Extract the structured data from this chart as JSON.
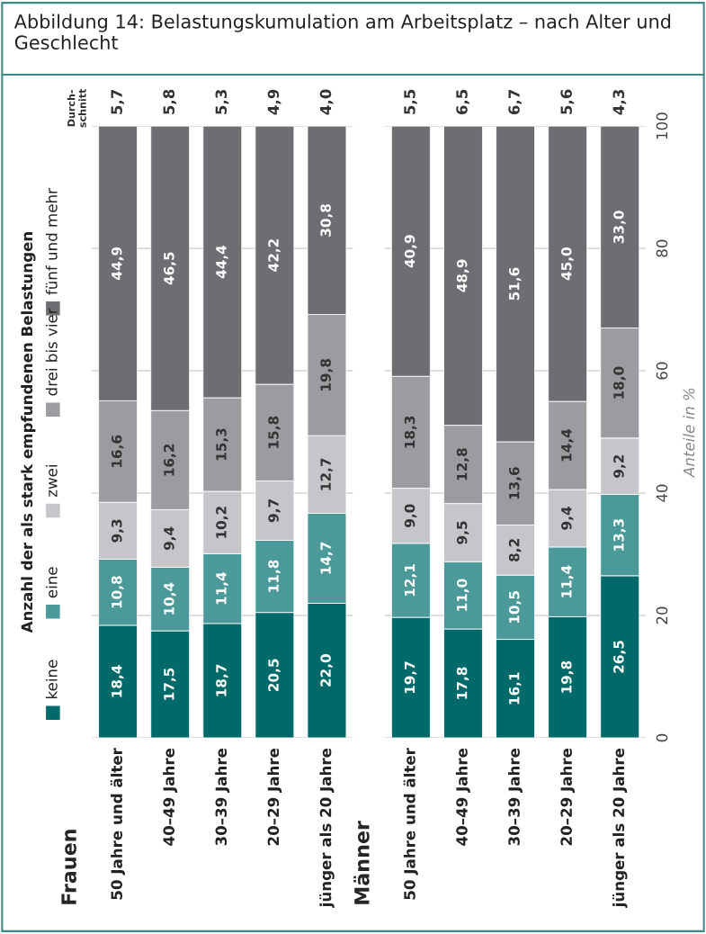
{
  "chart_data": [
    {
      "type": "bar",
      "title": "Abbildung 14: Belastungskumulation am Arbeitsplatz – nach Alter und Geschlecht",
      "subtitle": "Frauen",
      "legend_title": "Anzahl der als stark empfundenen Belastungen",
      "legend": "left",
      "stacked": true,
      "grid": "y",
      "tick_labels": "x",
      "categories": [
        "50 Jahre und älter",
        "40–49 Jahre",
        "30–39 Jahre",
        "20–29 Jahre",
        "jünger als 20 Jahre"
      ],
      "ylim": [
        0,
        100
      ],
      "yticks": [
        0,
        20,
        40,
        60,
        80,
        100
      ],
      "series": [
        {
          "name": "keine",
          "color": "#006a6a",
          "values": [
            18.4,
            17.5,
            18.7,
            20.5,
            22.0
          ],
          "value_labels": [
            "18,4",
            "17,5",
            "18,7",
            "20,5",
            "22,0"
          ]
        },
        {
          "name": "eine",
          "color": "#4b9999",
          "values": [
            10.8,
            10.4,
            11.4,
            11.8,
            14.7
          ],
          "value_labels": [
            "10,8",
            "10,4",
            "11,4",
            "11,8",
            "14,7"
          ]
        },
        {
          "name": "zwei",
          "color": "#c6c6ca",
          "values": [
            9.3,
            9.4,
            10.2,
            9.7,
            12.7
          ],
          "value_labels": [
            "9,3",
            "9,4",
            "10,2",
            "9,7",
            "12,7"
          ]
        },
        {
          "name": "drei bis vier",
          "color": "#9c9ca0",
          "values": [
            16.6,
            16.2,
            15.3,
            15.8,
            19.8
          ],
          "value_labels": [
            "16,6",
            "16,2",
            "15,3",
            "15,8",
            "19,8"
          ]
        },
        {
          "name": "fünf und mehr",
          "color": "#6d6d72",
          "values": [
            44.9,
            46.5,
            44.4,
            42.2,
            30.8
          ],
          "value_labels": [
            "44,9",
            "46,5",
            "44,4",
            "42,2",
            "30,8"
          ]
        }
      ],
      "annotations": [
        "Durch-\nschnitt",
        "5,7",
        "5,8",
        "5,3",
        "4,9",
        "4,0"
      ]
    },
    {
      "type": "bar",
      "subtitle": "Männer",
      "ylabel": "Anteile in %",
      "stacked": true,
      "grid": "y",
      "categories": [
        "50 Jahre und älter",
        "40–49 Jahre",
        "30–39 Jahre",
        "20–29 Jahre",
        "jünger als 20 Jahre"
      ],
      "ylim": [
        0,
        100
      ],
      "yticks": [
        0,
        20,
        40,
        60,
        80,
        100
      ],
      "series": [
        {
          "color": "#006a6a",
          "values": [
            19.7,
            17.8,
            16.1,
            19.8,
            26.5
          ],
          "value_labels": [
            "19,7",
            "17,8",
            "16,1",
            "19,8",
            "26,5"
          ]
        },
        {
          "color": "#4b9999",
          "values": [
            12.1,
            11.0,
            10.5,
            11.4,
            13.3
          ],
          "value_labels": [
            "12,1",
            "11,0",
            "10,5",
            "11,4",
            "13,3"
          ]
        },
        {
          "color": "#c6c6ca",
          "values": [
            9.0,
            9.5,
            8.2,
            9.4,
            9.2
          ],
          "value_labels": [
            "9,0",
            "9,5",
            "8,2",
            "9,4",
            "9,2"
          ]
        },
        {
          "color": "#9c9ca0",
          "values": [
            18.3,
            12.8,
            13.6,
            14.4,
            18.0
          ],
          "value_labels": [
            "18,3",
            "12,8",
            "13,6",
            "14,4",
            "18,0"
          ]
        },
        {
          "color": "#6d6d72",
          "values": [
            40.9,
            48.9,
            51.6,
            45.0,
            33.0
          ],
          "value_labels": [
            "40,9",
            "48,9",
            "51,6",
            "45,0",
            "33,0"
          ]
        }
      ],
      "annotations": [
        "5,5",
        "6,5",
        "6,7",
        "5,6",
        "4,3"
      ]
    }
  ]
}
